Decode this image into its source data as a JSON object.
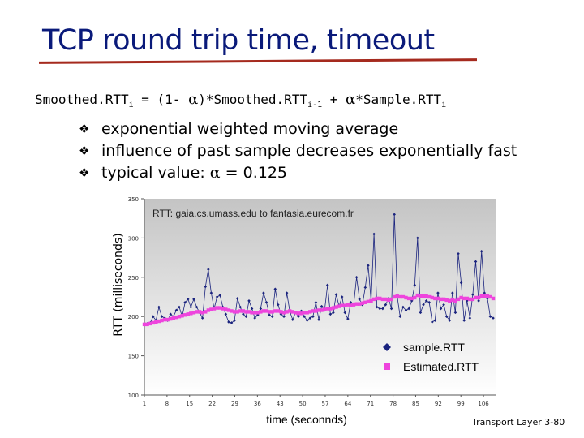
{
  "slide": {
    "title": "TCP round trip time, timeout",
    "formula": {
      "lhs": "Smoothed.RTT",
      "lhs_sub": "i",
      "eq": " = (1- ",
      "alpha": "α",
      "mid": ")*Smoothed.RTT",
      "mid_sub": "i-1",
      "plus": " + ",
      "alpha2": "α",
      "rhs": "*Sample.RTT",
      "rhs_sub": "i"
    },
    "bullets": [
      "exponential weighted moving average",
      "influence of past sample decreases exponentially fast"
    ],
    "bullet3": {
      "prefix": "typical value: ",
      "alpha": "α",
      "suffix": " = 0.125"
    },
    "footer": "Transport Layer 3-80",
    "icons": {
      "bullet": "checkmark-diamond-icon"
    }
  },
  "chart_data": {
    "type": "line",
    "title": "RTT: gaia.cs.umass.edu to fantasia.eurecom.fr",
    "xlabel": "time (seconnds)",
    "ylabel": "RTT (milliseconds)",
    "xlim": [
      1,
      110
    ],
    "ylim": [
      100,
      350
    ],
    "yticks": [
      "100",
      "150",
      "200",
      "250",
      "300",
      "350"
    ],
    "xticks": [
      "1",
      "8",
      "15",
      "22",
      "29",
      "36",
      "43",
      "50",
      "57",
      "64",
      "71",
      "78",
      "85",
      "92",
      "99",
      "106"
    ],
    "grid": false,
    "legend_position": "bottom-right",
    "colors": {
      "sample": "#1a237e",
      "estimated": "#ee44dd",
      "plot_bg": "#cfcfcf"
    },
    "series": [
      {
        "name": "sample.RTT",
        "marker": "diamond",
        "values": [
          190,
          191,
          192,
          200,
          195,
          212,
          200,
          198,
          195,
          203,
          200,
          208,
          212,
          200,
          218,
          222,
          212,
          222,
          212,
          205,
          198,
          238,
          260,
          230,
          210,
          225,
          227,
          212,
          203,
          193,
          192,
          195,
          223,
          212,
          203,
          200,
          220,
          210,
          198,
          202,
          210,
          230,
          218,
          202,
          200,
          235,
          215,
          203,
          200,
          230,
          207,
          196,
          205,
          200,
          207,
          200,
          195,
          198,
          200,
          218,
          196,
          213,
          208,
          240,
          203,
          205,
          228,
          213,
          225,
          205,
          197,
          218,
          215,
          250,
          222,
          215,
          237,
          265,
          220,
          305,
          212,
          210,
          210,
          215,
          223,
          210,
          330,
          225,
          200,
          212,
          208,
          210,
          220,
          240,
          300,
          205,
          215,
          220,
          218,
          193,
          195,
          230,
          210,
          215,
          200,
          195,
          230,
          205,
          280,
          243,
          195,
          220,
          198,
          228,
          270,
          220,
          283,
          230,
          223,
          200,
          198
        ],
        "x_step": 0.9
      },
      {
        "name": "Estimated.RTT",
        "marker": "square",
        "values": [
          190,
          190,
          191,
          192,
          193,
          194,
          195,
          196,
          196,
          197,
          198,
          199,
          200,
          201,
          202,
          203,
          204,
          205,
          206,
          206,
          205,
          206,
          208,
          209,
          210,
          211,
          211,
          210,
          209,
          208,
          207,
          206,
          206,
          207,
          207,
          206,
          206,
          205,
          205,
          205,
          206,
          207,
          207,
          206,
          206,
          207,
          207,
          206,
          205,
          206,
          207,
          206,
          205,
          204,
          204,
          205,
          205,
          206,
          207,
          207,
          208,
          208,
          209,
          210,
          210,
          211,
          212,
          213,
          214,
          214,
          215,
          214,
          215,
          216,
          216,
          217,
          218,
          219,
          220,
          222,
          223,
          223,
          222,
          222,
          221,
          222,
          225,
          226,
          225,
          225,
          224,
          223,
          223,
          224,
          227,
          226,
          226,
          226,
          225,
          224,
          223,
          223,
          222,
          222,
          221,
          220,
          221,
          220,
          222,
          224,
          223,
          223,
          222,
          222,
          224,
          224,
          226,
          226,
          226,
          225,
          223
        ],
        "x_step": 0.9
      }
    ]
  }
}
